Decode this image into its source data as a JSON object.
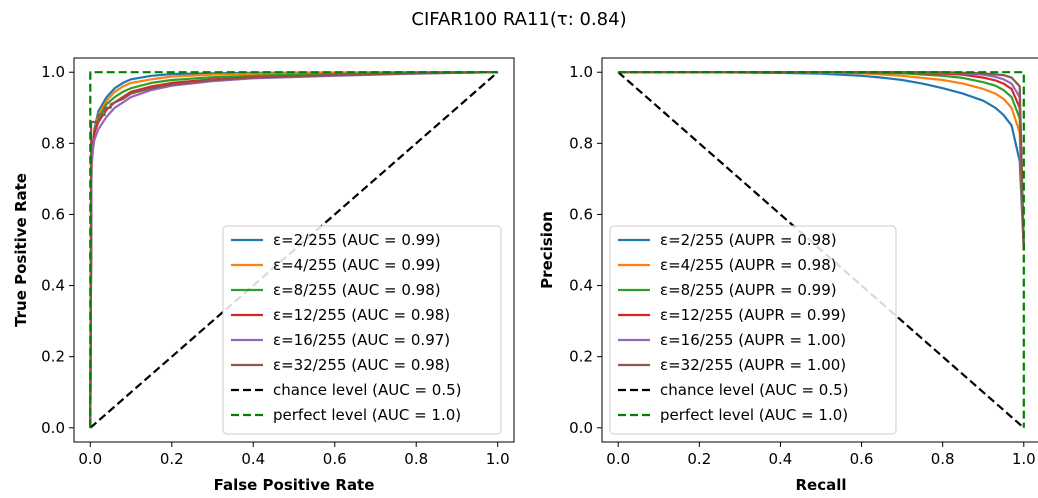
{
  "figure": {
    "suptitle": "CIFAR100 RA11(τ: 0.84)"
  },
  "chart_data": [
    {
      "type": "line",
      "xlabel": "False Positive Rate",
      "ylabel": "True Positive Rate",
      "xlim": [
        -0.04,
        1.04
      ],
      "ylim": [
        -0.04,
        1.04
      ],
      "xticks": [
        0.0,
        0.2,
        0.4,
        0.6,
        0.8,
        1.0
      ],
      "yticks": [
        0.0,
        0.2,
        0.4,
        0.6,
        0.8,
        1.0
      ],
      "xtick_labels": [
        "0.0",
        "0.2",
        "0.4",
        "0.6",
        "0.8",
        "1.0"
      ],
      "ytick_labels": [
        "0.0",
        "0.2",
        "0.4",
        "0.6",
        "0.8",
        "1.0"
      ],
      "legend_position": "lower-right",
      "grid": false,
      "series": [
        {
          "name": "ε=2/255 (AUC = 0.99)",
          "color": "#1f77b4",
          "style": "solid",
          "x": [
            0,
            0.003,
            0.01,
            0.02,
            0.04,
            0.06,
            0.08,
            0.1,
            0.15,
            0.2,
            0.3,
            0.4,
            0.6,
            0.8,
            1.0
          ],
          "y": [
            0,
            0.74,
            0.84,
            0.89,
            0.93,
            0.955,
            0.97,
            0.98,
            0.99,
            0.995,
            0.997,
            0.998,
            0.999,
            1.0,
            1.0
          ]
        },
        {
          "name": "ε=4/255 (AUC = 0.99)",
          "color": "#ff7f0e",
          "style": "solid",
          "x": [
            0,
            0.003,
            0.01,
            0.02,
            0.04,
            0.06,
            0.08,
            0.1,
            0.15,
            0.2,
            0.3,
            0.4,
            0.6,
            0.8,
            1.0
          ],
          "y": [
            0,
            0.73,
            0.83,
            0.88,
            0.92,
            0.945,
            0.96,
            0.97,
            0.98,
            0.988,
            0.993,
            0.996,
            0.998,
            0.999,
            1.0
          ]
        },
        {
          "name": "ε=8/255 (AUC = 0.98)",
          "color": "#2ca02c",
          "style": "solid",
          "x": [
            0,
            0.003,
            0.01,
            0.02,
            0.04,
            0.06,
            0.08,
            0.1,
            0.15,
            0.2,
            0.3,
            0.4,
            0.6,
            0.8,
            1.0
          ],
          "y": [
            0,
            0.75,
            0.83,
            0.87,
            0.91,
            0.93,
            0.945,
            0.955,
            0.97,
            0.978,
            0.986,
            0.99,
            0.995,
            0.998,
            1.0
          ]
        },
        {
          "name": "ε=12/255 (AUC = 0.98)",
          "color": "#d62728",
          "style": "solid",
          "x": [
            0,
            0.003,
            0.01,
            0.02,
            0.04,
            0.06,
            0.08,
            0.1,
            0.15,
            0.2,
            0.3,
            0.4,
            0.6,
            0.8,
            1.0
          ],
          "y": [
            0,
            0.77,
            0.83,
            0.86,
            0.895,
            0.915,
            0.93,
            0.945,
            0.96,
            0.97,
            0.98,
            0.986,
            0.992,
            0.997,
            1.0
          ]
        },
        {
          "name": "ε=16/255 (AUC = 0.97)",
          "color": "#9467bd",
          "style": "solid",
          "x": [
            0,
            0.003,
            0.01,
            0.02,
            0.04,
            0.06,
            0.08,
            0.1,
            0.15,
            0.2,
            0.3,
            0.4,
            0.6,
            0.8,
            1.0
          ],
          "y": [
            0,
            0.76,
            0.81,
            0.84,
            0.875,
            0.9,
            0.915,
            0.93,
            0.95,
            0.962,
            0.975,
            0.983,
            0.99,
            0.996,
            1.0
          ]
        },
        {
          "name": "ε=32/255 (AUC = 0.98)",
          "color": "#8c564b",
          "style": "solid",
          "x": [
            0,
            0.002,
            0.002,
            0.02,
            0.02,
            0.035,
            0.035,
            0.05,
            0.05,
            0.08,
            0.1,
            0.15,
            0.2,
            0.3,
            0.4,
            0.6,
            0.8,
            1.0
          ],
          "y": [
            0,
            0.8,
            0.86,
            0.86,
            0.88,
            0.88,
            0.9,
            0.9,
            0.91,
            0.925,
            0.94,
            0.955,
            0.965,
            0.978,
            0.985,
            0.992,
            0.997,
            1.0
          ]
        },
        {
          "name": "chance level (AUC = 0.5)",
          "color": "#000000",
          "style": "dashed",
          "x": [
            0,
            1
          ],
          "y": [
            0,
            1
          ]
        },
        {
          "name": "perfect level (AUC = 1.0)",
          "color": "#008000",
          "style": "dashed",
          "x": [
            0,
            0,
            1
          ],
          "y": [
            0,
            1,
            1
          ]
        }
      ]
    },
    {
      "type": "line",
      "xlabel": "Recall",
      "ylabel": "Precision",
      "xlim": [
        -0.04,
        1.04
      ],
      "ylim": [
        -0.04,
        1.04
      ],
      "xticks": [
        0.0,
        0.2,
        0.4,
        0.6,
        0.8,
        1.0
      ],
      "yticks": [
        0.0,
        0.2,
        0.4,
        0.6,
        0.8,
        1.0
      ],
      "xtick_labels": [
        "0.0",
        "0.2",
        "0.4",
        "0.6",
        "0.8",
        "1.0"
      ],
      "ytick_labels": [
        "0.0",
        "0.2",
        "0.4",
        "0.6",
        "0.8",
        "1.0"
      ],
      "legend_position": "lower-left",
      "grid": false,
      "series": [
        {
          "name": "ε=2/255 (AUPR = 0.98)",
          "color": "#1f77b4",
          "style": "solid",
          "x": [
            0,
            0.2,
            0.4,
            0.5,
            0.6,
            0.65,
            0.7,
            0.75,
            0.8,
            0.85,
            0.9,
            0.93,
            0.95,
            0.97,
            0.99,
            1.0
          ],
          "y": [
            1.0,
            1.0,
            0.998,
            0.996,
            0.99,
            0.985,
            0.978,
            0.968,
            0.955,
            0.94,
            0.92,
            0.9,
            0.88,
            0.85,
            0.75,
            0.5
          ]
        },
        {
          "name": "ε=4/255 (AUPR = 0.98)",
          "color": "#ff7f0e",
          "style": "solid",
          "x": [
            0,
            0.4,
            0.6,
            0.7,
            0.8,
            0.85,
            0.9,
            0.93,
            0.95,
            0.97,
            0.99,
            1.0
          ],
          "y": [
            1.0,
            1.0,
            0.997,
            0.99,
            0.978,
            0.968,
            0.953,
            0.94,
            0.925,
            0.9,
            0.83,
            0.5
          ]
        },
        {
          "name": "ε=8/255 (AUPR = 0.99)",
          "color": "#2ca02c",
          "style": "solid",
          "x": [
            0,
            0.5,
            0.7,
            0.8,
            0.85,
            0.9,
            0.93,
            0.95,
            0.97,
            0.99,
            1.0
          ],
          "y": [
            1.0,
            1.0,
            0.997,
            0.99,
            0.984,
            0.972,
            0.962,
            0.95,
            0.93,
            0.87,
            0.5
          ]
        },
        {
          "name": "ε=12/255 (AUPR = 0.99)",
          "color": "#d62728",
          "style": "solid",
          "x": [
            0,
            0.6,
            0.8,
            0.85,
            0.9,
            0.93,
            0.95,
            0.97,
            0.99,
            1.0
          ],
          "y": [
            1.0,
            1.0,
            0.996,
            0.993,
            0.985,
            0.977,
            0.968,
            0.953,
            0.9,
            0.5
          ]
        },
        {
          "name": "ε=16/255 (AUPR = 1.00)",
          "color": "#9467bd",
          "style": "solid",
          "x": [
            0,
            0.7,
            0.85,
            0.9,
            0.93,
            0.95,
            0.97,
            0.99,
            1.0
          ],
          "y": [
            1.0,
            1.0,
            0.997,
            0.993,
            0.987,
            0.98,
            0.968,
            0.93,
            0.5
          ]
        },
        {
          "name": "ε=32/255 (AUPR = 1.00)",
          "color": "#8c564b",
          "style": "solid",
          "x": [
            0,
            0.8,
            0.9,
            0.95,
            0.97,
            0.99,
            1.0
          ],
          "y": [
            1.0,
            1.0,
            0.997,
            0.992,
            0.985,
            0.96,
            0.5
          ]
        },
        {
          "name": "chance level (AUC = 0.5)",
          "color": "#000000",
          "style": "dashed",
          "x": [
            0,
            1
          ],
          "y": [
            1,
            0
          ]
        },
        {
          "name": "perfect level (AUC = 1.0)",
          "color": "#008000",
          "style": "dashed",
          "x": [
            0,
            1,
            1
          ],
          "y": [
            1,
            1,
            0
          ]
        }
      ]
    }
  ]
}
